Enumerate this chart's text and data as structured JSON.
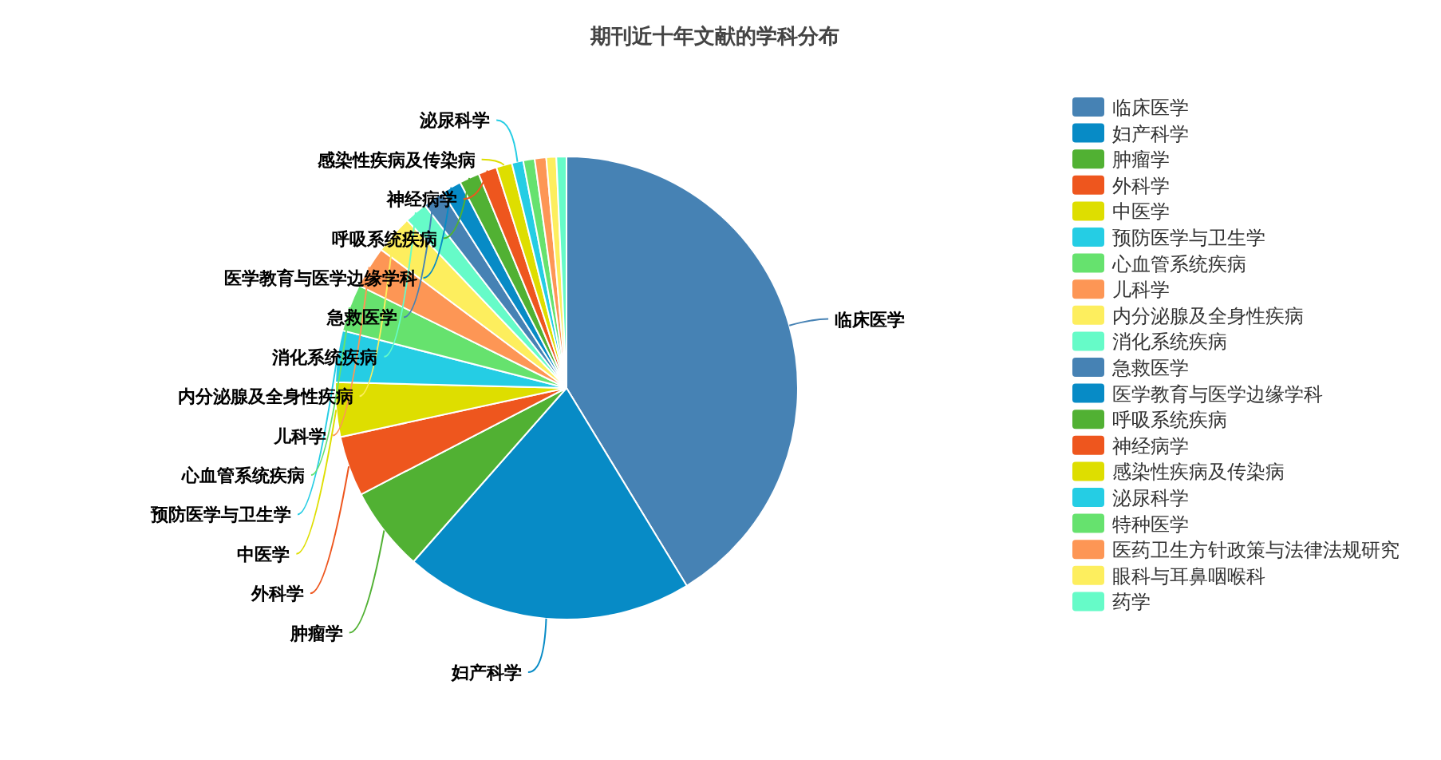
{
  "chart_data": {
    "type": "pie",
    "title": "期刊近十年文献的学科分布",
    "categories": [
      "临床医学",
      "妇产科学",
      "肿瘤学",
      "外科学",
      "中医学",
      "预防医学与卫生学",
      "心血管系统疾病",
      "儿科学",
      "内分泌腺及全身性疾病",
      "消化系统疾病",
      "急救医学",
      "医学教育与医学边缘学科",
      "呼吸系统疾病",
      "神经病学",
      "感染性疾病及传染病",
      "泌尿科学",
      "特种医学",
      "医药卫生方针政策与法律法规研究",
      "眼科与耳鼻咽喉科",
      "药学"
    ],
    "values": [
      41.3,
      20.2,
      5.9,
      4.2,
      3.8,
      3.6,
      3.3,
      2.9,
      2.7,
      1.6,
      1.5,
      1.4,
      1.4,
      1.3,
      1.1,
      0.8,
      0.8,
      0.8,
      0.7,
      0.7
    ],
    "colors": [
      "#4682b4",
      "#078bc6",
      "#51b133",
      "#ee561e",
      "#dede00",
      "#25cde4",
      "#66e26e",
      "#fd9655",
      "#fdee5e",
      "#66fbc8",
      "#4682b4",
      "#078bc6",
      "#51b133",
      "#ee561e",
      "#dede00",
      "#25cde4",
      "#66e26e",
      "#fd9655",
      "#fdee5e",
      "#66fbc8"
    ],
    "legend": "right"
  }
}
